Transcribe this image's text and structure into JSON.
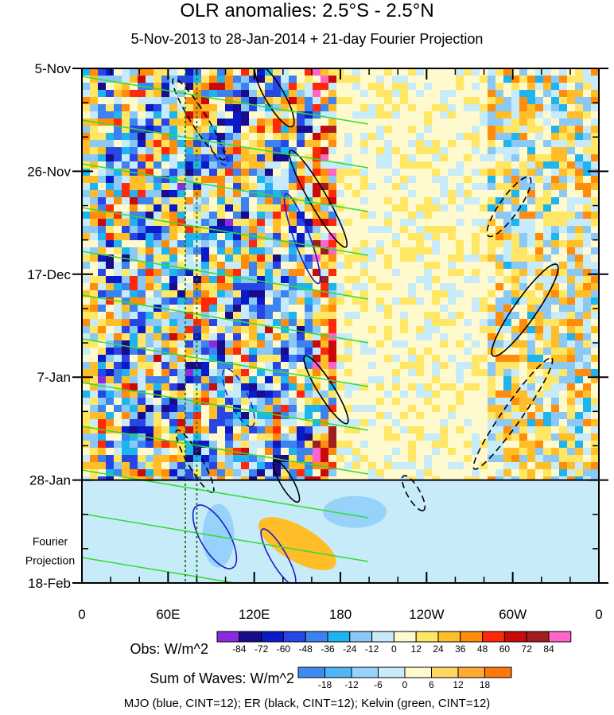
{
  "chart_data": {
    "type": "heatmap",
    "title": "OLR anomalies: 2.5°S - 2.5°N",
    "subtitle": "5-Nov-2013 to 28-Jan-2014 + 21-day Fourier Projection",
    "x_tick_labels": [
      "0",
      "60E",
      "120E",
      "180",
      "120W",
      "60W",
      "0"
    ],
    "x_range_deg_east": [
      0,
      360
    ],
    "y_tick_labels": [
      "5-Nov",
      "26-Nov",
      "17-Dec",
      "7-Jan",
      "28-Jan",
      "18-Feb"
    ],
    "y_range": [
      "2013-11-05",
      "2014-02-18"
    ],
    "observation_end": "2014-01-28",
    "projection_label": [
      "Fourier",
      "Projection"
    ],
    "legend_obs": {
      "label": "Obs: W/m^2",
      "levels": [
        "-84",
        "-72",
        "-60",
        "-48",
        "-36",
        "-24",
        "-12",
        "0",
        "12",
        "24",
        "36",
        "48",
        "60",
        "72",
        "84"
      ],
      "colors": [
        "#8a2be2",
        "#1a0a8c",
        "#0a1ac8",
        "#2846e6",
        "#3c82f0",
        "#1eb4f0",
        "#8cc8f5",
        "#c8ebfa",
        "#fffacd",
        "#ffe664",
        "#ffbe28",
        "#ff8c0a",
        "#ff280a",
        "#c80a0a",
        "#a01e1e",
        "#ff64c8"
      ]
    },
    "legend_waves": {
      "label": "Sum of Waves: W/m^2",
      "levels": [
        "-18",
        "-12",
        "-6",
        "0",
        "6",
        "12",
        "18"
      ],
      "colors": [
        "#3c8cf0",
        "#50b4f5",
        "#96d2fa",
        "#c8ebfa",
        "#fffacd",
        "#ffd764",
        "#ffaa32",
        "#ff780a"
      ]
    },
    "footnote": "MJO (blue, CINT=12); ER (black, CINT=12); Kelvin (green, CINT=12)",
    "contour_series": [
      {
        "name": "MJO",
        "color": "#1a1ad0",
        "cint": 12
      },
      {
        "name": "ER",
        "color": "#000000",
        "cint": 12
      },
      {
        "name": "Kelvin",
        "color": "#33dd33",
        "cint": 12
      }
    ],
    "reference_lines_lon": [
      72,
      80
    ]
  }
}
